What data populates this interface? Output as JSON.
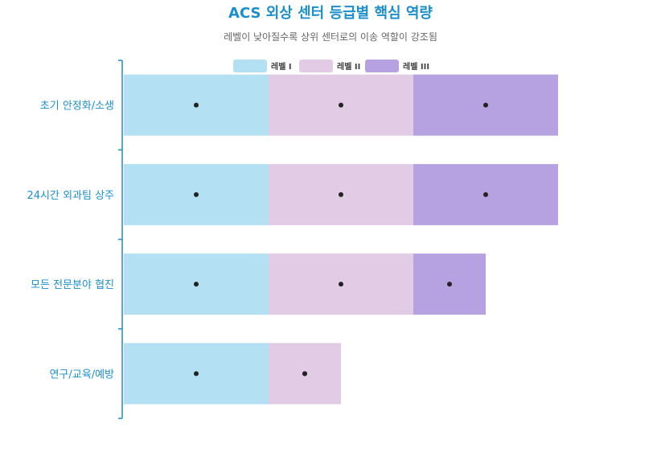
{
  "chart_data": {
    "type": "bar",
    "orientation": "horizontal",
    "stacked": true,
    "title": "ACS 외상 센터 등급별 핵심 역량",
    "subtitle": "레벨이 낮아질수록 상위 센터로의 이송 역할이 강조됨",
    "categories": [
      "초기 안정화/소생",
      "24시간 외과팀 상주",
      "모든 전문분야 협진",
      "연구/교육/예방"
    ],
    "series": [
      {
        "name": "레벨 I",
        "values": [
          1,
          1,
          1,
          1
        ],
        "color": "#b3e0f2"
      },
      {
        "name": "레벨 II",
        "values": [
          1,
          1,
          1,
          0.5
        ],
        "color": "#e1cbe5"
      },
      {
        "name": "레벨 III",
        "values": [
          1,
          1,
          0.5,
          0
        ],
        "color": "#b6a2e0"
      }
    ],
    "extra_markers": [
      {
        "category": "연구/교육/예방",
        "x": 1.25
      }
    ],
    "xlim": [
      0,
      3.6
    ],
    "grid": false,
    "legend_position": "top",
    "colors": {
      "title": "#1b8fcc",
      "subtitle": "#666666",
      "axis": "#1b8fcc",
      "tick_label": "#1b8fcc",
      "marker": "#222222",
      "legend_text": "#444444"
    }
  }
}
